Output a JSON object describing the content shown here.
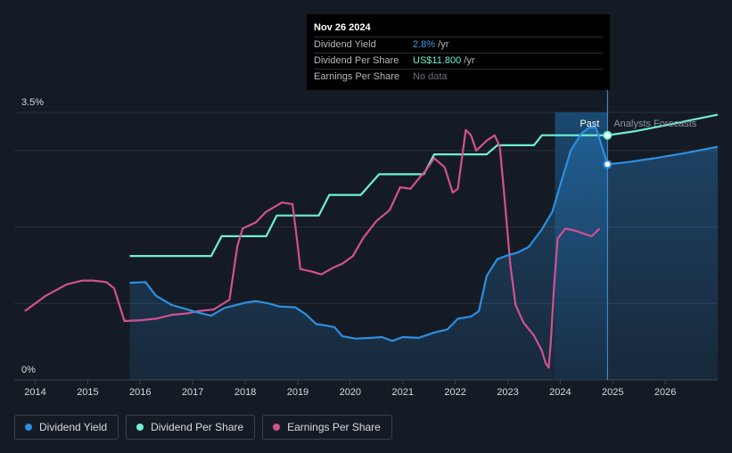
{
  "tooltip": {
    "date": "Nov 26 2024",
    "rows": [
      {
        "label": "Dividend Yield",
        "value": "2.8%",
        "unit": " /yr"
      },
      {
        "label": "Dividend Per Share",
        "value": "US$11.800",
        "unit": " /yr"
      },
      {
        "label": "Earnings Per Share",
        "value": "No data",
        "unit": ""
      }
    ]
  },
  "legend": [
    {
      "label": "Dividend Yield",
      "color": "#2d8fe0"
    },
    {
      "label": "Dividend Per Share",
      "color": "#6ff0d2"
    },
    {
      "label": "Earnings Per Share",
      "color": "#d1518f"
    }
  ],
  "chart_data": {
    "type": "line",
    "title": "",
    "xlabel": "",
    "ylabel": "",
    "y_axis_labels": [
      "3.5%",
      "0%"
    ],
    "ylim": [
      0,
      3.5
    ],
    "xlim": [
      2013.8,
      2027.0
    ],
    "x_ticks": [
      "2014",
      "2015",
      "2016",
      "2017",
      "2018",
      "2019",
      "2020",
      "2021",
      "2022",
      "2023",
      "2024",
      "2025",
      "2026"
    ],
    "x_tick_values": [
      2014,
      2015,
      2016,
      2017,
      2018,
      2019,
      2020,
      2021,
      2022,
      2023,
      2024,
      2025,
      2026
    ],
    "region_labels": {
      "past": "Past",
      "forecast": "Analysts Forecasts"
    },
    "past_start": 2023.9,
    "now": 2024.9,
    "series": [
      {
        "name": "Dividend Yield",
        "color": "#2d8fe0",
        "fill": true,
        "points": [
          [
            2015.8,
            1.27
          ],
          [
            2016.1,
            1.28
          ],
          [
            2016.3,
            1.1
          ],
          [
            2016.6,
            0.98
          ],
          [
            2016.9,
            0.92
          ],
          [
            2017.1,
            0.88
          ],
          [
            2017.35,
            0.84
          ],
          [
            2017.6,
            0.94
          ],
          [
            2018.0,
            1.01
          ],
          [
            2018.2,
            1.03
          ],
          [
            2018.45,
            1.0
          ],
          [
            2018.65,
            0.96
          ],
          [
            2018.95,
            0.95
          ],
          [
            2019.15,
            0.86
          ],
          [
            2019.35,
            0.73
          ],
          [
            2019.55,
            0.71
          ],
          [
            2019.7,
            0.69
          ],
          [
            2019.85,
            0.57
          ],
          [
            2020.1,
            0.54
          ],
          [
            2020.4,
            0.55
          ],
          [
            2020.6,
            0.56
          ],
          [
            2020.8,
            0.51
          ],
          [
            2021.0,
            0.56
          ],
          [
            2021.3,
            0.55
          ],
          [
            2021.6,
            0.62
          ],
          [
            2021.85,
            0.66
          ],
          [
            2022.05,
            0.8
          ],
          [
            2022.3,
            0.83
          ],
          [
            2022.45,
            0.9
          ],
          [
            2022.6,
            1.36
          ],
          [
            2022.8,
            1.58
          ],
          [
            2023.0,
            1.63
          ],
          [
            2023.2,
            1.67
          ],
          [
            2023.4,
            1.74
          ],
          [
            2023.65,
            1.97
          ],
          [
            2023.85,
            2.2
          ],
          [
            2024.0,
            2.55
          ],
          [
            2024.2,
            3.0
          ],
          [
            2024.4,
            3.22
          ],
          [
            2024.55,
            3.3
          ],
          [
            2024.68,
            3.3
          ],
          [
            2024.9,
            2.82
          ],
          [
            2025.3,
            2.85
          ],
          [
            2025.8,
            2.9
          ],
          [
            2026.4,
            2.97
          ],
          [
            2027.0,
            3.05
          ]
        ]
      },
      {
        "name": "Dividend Per Share",
        "color": "#6ff0d2",
        "fill": false,
        "points": [
          [
            2015.8,
            1.62
          ],
          [
            2017.35,
            1.62
          ],
          [
            2017.55,
            1.88
          ],
          [
            2018.4,
            1.88
          ],
          [
            2018.6,
            2.15
          ],
          [
            2019.4,
            2.15
          ],
          [
            2019.6,
            2.42
          ],
          [
            2020.2,
            2.42
          ],
          [
            2020.55,
            2.69
          ],
          [
            2021.4,
            2.69
          ],
          [
            2021.6,
            2.95
          ],
          [
            2022.6,
            2.95
          ],
          [
            2022.8,
            3.07
          ],
          [
            2023.5,
            3.07
          ],
          [
            2023.65,
            3.2
          ],
          [
            2024.9,
            3.2
          ],
          [
            2025.4,
            3.25
          ],
          [
            2026.0,
            3.33
          ],
          [
            2026.5,
            3.4
          ],
          [
            2027.0,
            3.47
          ]
        ]
      },
      {
        "name": "Earnings Per Share",
        "color": "#d1518f",
        "fill": false,
        "points": [
          [
            2013.8,
            0.9
          ],
          [
            2014.2,
            1.1
          ],
          [
            2014.6,
            1.25
          ],
          [
            2014.9,
            1.3
          ],
          [
            2015.1,
            1.3
          ],
          [
            2015.35,
            1.28
          ],
          [
            2015.5,
            1.2
          ],
          [
            2015.7,
            0.77
          ],
          [
            2016.0,
            0.78
          ],
          [
            2016.3,
            0.8
          ],
          [
            2016.6,
            0.85
          ],
          [
            2016.9,
            0.87
          ],
          [
            2017.1,
            0.9
          ],
          [
            2017.4,
            0.92
          ],
          [
            2017.7,
            1.05
          ],
          [
            2017.85,
            1.75
          ],
          [
            2017.95,
            1.98
          ],
          [
            2018.2,
            2.06
          ],
          [
            2018.4,
            2.2
          ],
          [
            2018.7,
            2.32
          ],
          [
            2018.9,
            2.3
          ],
          [
            2019.0,
            1.75
          ],
          [
            2019.05,
            1.45
          ],
          [
            2019.25,
            1.42
          ],
          [
            2019.45,
            1.38
          ],
          [
            2019.65,
            1.46
          ],
          [
            2019.85,
            1.52
          ],
          [
            2020.05,
            1.62
          ],
          [
            2020.25,
            1.86
          ],
          [
            2020.5,
            2.08
          ],
          [
            2020.75,
            2.22
          ],
          [
            2020.95,
            2.52
          ],
          [
            2021.15,
            2.5
          ],
          [
            2021.3,
            2.63
          ],
          [
            2021.45,
            2.75
          ],
          [
            2021.6,
            2.9
          ],
          [
            2021.8,
            2.78
          ],
          [
            2021.95,
            2.45
          ],
          [
            2022.05,
            2.5
          ],
          [
            2022.2,
            3.27
          ],
          [
            2022.3,
            3.2
          ],
          [
            2022.4,
            3.0
          ],
          [
            2022.6,
            3.13
          ],
          [
            2022.75,
            3.2
          ],
          [
            2022.85,
            3.05
          ],
          [
            2022.95,
            2.3
          ],
          [
            2023.05,
            1.5
          ],
          [
            2023.15,
            0.98
          ],
          [
            2023.3,
            0.75
          ],
          [
            2023.5,
            0.58
          ],
          [
            2023.65,
            0.38
          ],
          [
            2023.72,
            0.22
          ],
          [
            2023.78,
            0.16
          ],
          [
            2023.82,
            0.5
          ],
          [
            2023.88,
            1.2
          ],
          [
            2023.95,
            1.85
          ],
          [
            2024.1,
            1.98
          ],
          [
            2024.3,
            1.95
          ],
          [
            2024.5,
            1.9
          ],
          [
            2024.6,
            1.88
          ],
          [
            2024.75,
            1.98
          ]
        ]
      }
    ],
    "markers": [
      {
        "series": "Dividend Per Share",
        "x": 2024.9,
        "y": 3.2
      },
      {
        "series": "Dividend Yield",
        "x": 2024.9,
        "y": 2.82
      }
    ]
  }
}
